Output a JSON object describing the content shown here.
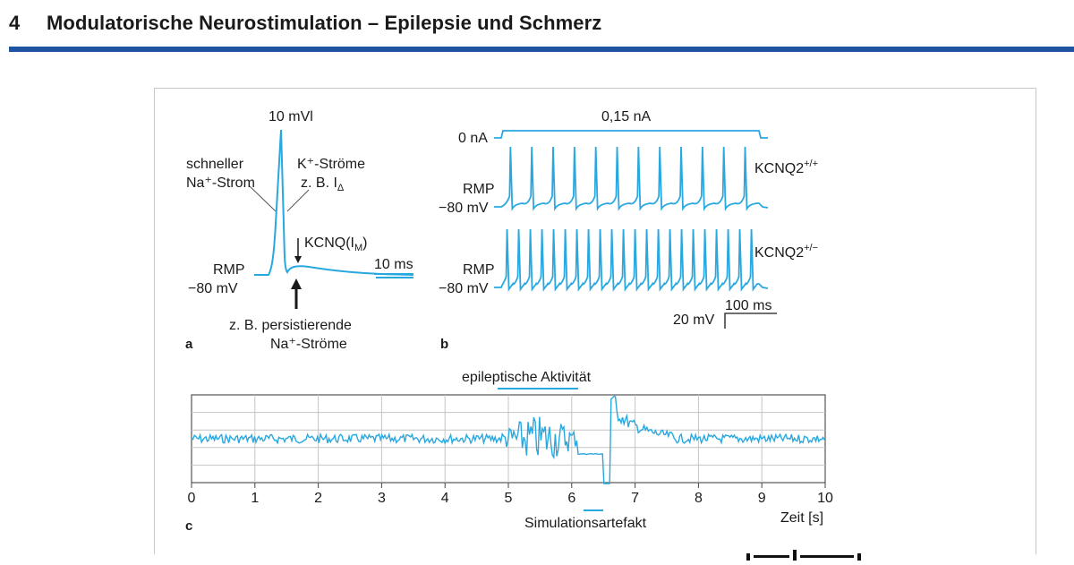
{
  "header": {
    "chapter_number": "4",
    "chapter_title": "Modulatorische Neurostimulation – Epilepsie und Schmerz"
  },
  "panel_a": {
    "label": "a",
    "scale_top": "10 mVl",
    "fast_na_line1": "schneller",
    "fast_na_line2": "Na⁺-Strom",
    "k_currents_line1": "K⁺-Ströme",
    "k_currents_line2": "z. B. I",
    "k_currents_sub": "Δ",
    "kcnq": "KCNQ(I",
    "kcnq_sub": "M",
    "kcnq_close": ")",
    "time_scale": "10 ms",
    "rmp": "RMP",
    "rmp_value": "−80 mV",
    "persist_line1": "z. B. persistierende",
    "persist_line2": "Na⁺-Ströme"
  },
  "panel_b": {
    "label": "b",
    "stim_current": "0,15 nA",
    "zero_current": "0 nA",
    "genotype_1": "KCNQ2",
    "genotype_1_sup": "+/+",
    "genotype_2": "KCNQ2",
    "genotype_2_sup": "+/−",
    "rmp": "RMP",
    "rmp_value": "−80 mV",
    "time_scale": "100 ms",
    "voltage_scale": "20 mV"
  },
  "panel_c": {
    "label": "c",
    "epileptic_label": "epileptische Aktivität",
    "artifact_label": "Simulationsartefakt",
    "x_axis_label": "Zeit [s]",
    "chart_data": {
      "type": "line",
      "x_ticks": [
        "0",
        "1",
        "2",
        "3",
        "4",
        "5",
        "6",
        "7",
        "8",
        "9",
        "10"
      ],
      "xlim": [
        0,
        10
      ],
      "grid": true,
      "epileptic_activity_range_s": [
        4.9,
        6.1
      ],
      "stimulation_artifact_range_s": [
        6.1,
        6.6
      ]
    }
  },
  "colors": {
    "trace": "#29a8e0",
    "header_rule": "#1f54a3",
    "grid": "#b0b0b0"
  }
}
